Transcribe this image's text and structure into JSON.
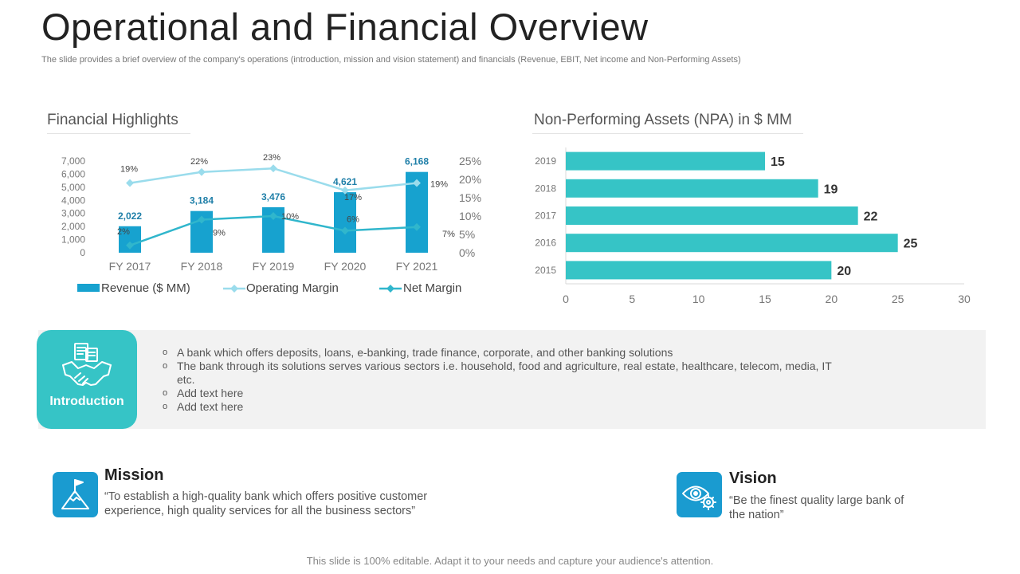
{
  "page": {
    "title": "Operational and Financial Overview",
    "subtitle": "The slide provides a brief overview of the company's operations (introduction, mission and vision statement) and financials (Revenue, EBIT, Net income and Non-Performing Assets)",
    "footer": "This slide is 100% editable. Adapt it to your needs and capture your audience's attention."
  },
  "colors": {
    "accent": "#36c4c6",
    "bar_blue": "#17a2cf",
    "operating_line": "#9adcec",
    "net_line": "#30b6cc",
    "icon_blue": "#1a9bd0",
    "panel_grey": "#f2f2f2"
  },
  "financial": {
    "heading": "Financial Highlights"
  },
  "npa": {
    "heading": "Non-Performing Assets (NPA) in $ MM"
  },
  "chart_data": [
    {
      "type": "bar",
      "title": "Financial Highlights",
      "categories": [
        "FY 2017",
        "FY 2018",
        "FY 2019",
        "FY 2020",
        "FY 2021"
      ],
      "series": [
        {
          "name": "Revenue ($ MM)",
          "kind": "bar",
          "axis": "left",
          "values": [
            2022,
            3184,
            3476,
            4621,
            6168
          ],
          "labels": [
            "2,022",
            "3,184",
            "3,476",
            "4,621",
            "6,168"
          ]
        },
        {
          "name": "Operating Margin",
          "kind": "line",
          "axis": "right",
          "values": [
            19,
            22,
            23,
            17,
            19
          ],
          "labels": [
            "19%",
            "22%",
            "23%",
            "17%",
            "19%"
          ]
        },
        {
          "name": "Net Margin",
          "kind": "line",
          "axis": "right",
          "values": [
            2,
            9,
            10,
            6,
            7
          ],
          "labels": [
            "2%",
            "9%",
            "10%",
            "6%",
            "7%"
          ]
        }
      ],
      "ylim_left": [
        0,
        7000
      ],
      "yticks_left": [
        0,
        1000,
        2000,
        3000,
        4000,
        5000,
        6000,
        7000
      ],
      "yticks_left_labels": [
        "0",
        "1,000",
        "2,000",
        "3,000",
        "4,000",
        "5,000",
        "6,000",
        "7,000"
      ],
      "ylim_right": [
        0,
        25
      ],
      "yticks_right": [
        0,
        5,
        10,
        15,
        20,
        25
      ],
      "yticks_right_labels": [
        "0%",
        "5%",
        "10%",
        "15%",
        "20%",
        "25%"
      ],
      "legend_position": "bottom",
      "grid": false
    },
    {
      "type": "bar",
      "orientation": "horizontal",
      "title": "Non-Performing Assets (NPA) in $ MM",
      "categories": [
        "2019",
        "2018",
        "2017",
        "2016",
        "2015"
      ],
      "values": [
        15,
        19,
        22,
        25,
        20
      ],
      "xlim": [
        0,
        30
      ],
      "xticks": [
        0,
        5,
        10,
        15,
        20,
        25,
        30
      ],
      "grid": false
    }
  ],
  "intro": {
    "label": "Introduction",
    "bullet_symbol": "o",
    "items": [
      "A bank which offers deposits, loans, e-banking, trade finance, corporate, and other banking solutions",
      "The bank through its solutions serves various sectors i.e. household, food and agriculture, real estate, healthcare, telecom, media, IT etc.",
      "Add text here",
      "Add text here"
    ]
  },
  "mission": {
    "title": "Mission",
    "text": "“To establish a high-quality bank which offers positive customer experience, high quality services for all the business sectors”"
  },
  "vision": {
    "title": "Vision",
    "text": "“Be the finest quality large bank of the nation”"
  }
}
